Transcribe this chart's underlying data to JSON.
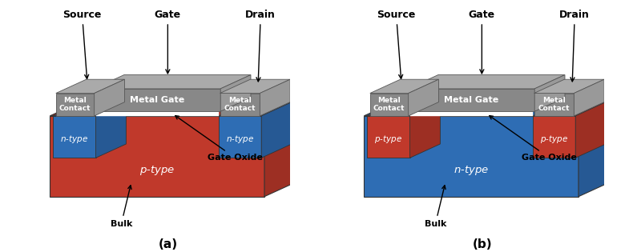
{
  "bg_color": "#ffffff",
  "p_type_color": "#c0392b",
  "n_type_color": "#2e6db4",
  "metal_color": "#888888",
  "metal_top_color": "#aaaaaa",
  "metal_right_color": "#999999",
  "oxide_color": "#ffffff",
  "label_a": "(a)",
  "label_b": "(b)",
  "nmos_substrate": "p-type",
  "nmos_diffusion": "n-type",
  "pmos_substrate": "n-type",
  "pmos_diffusion": "p-type",
  "source_label": "Source",
  "gate_label": "Gate",
  "drain_label": "Drain",
  "metal_contact_label": "Metal\nContact",
  "metal_gate_label": "Metal Gate",
  "gate_oxide_label": "Gate Oxide",
  "bulk_label": "Bulk",
  "font_size_label": 9,
  "font_size_body": 8,
  "font_size_caption": 11
}
